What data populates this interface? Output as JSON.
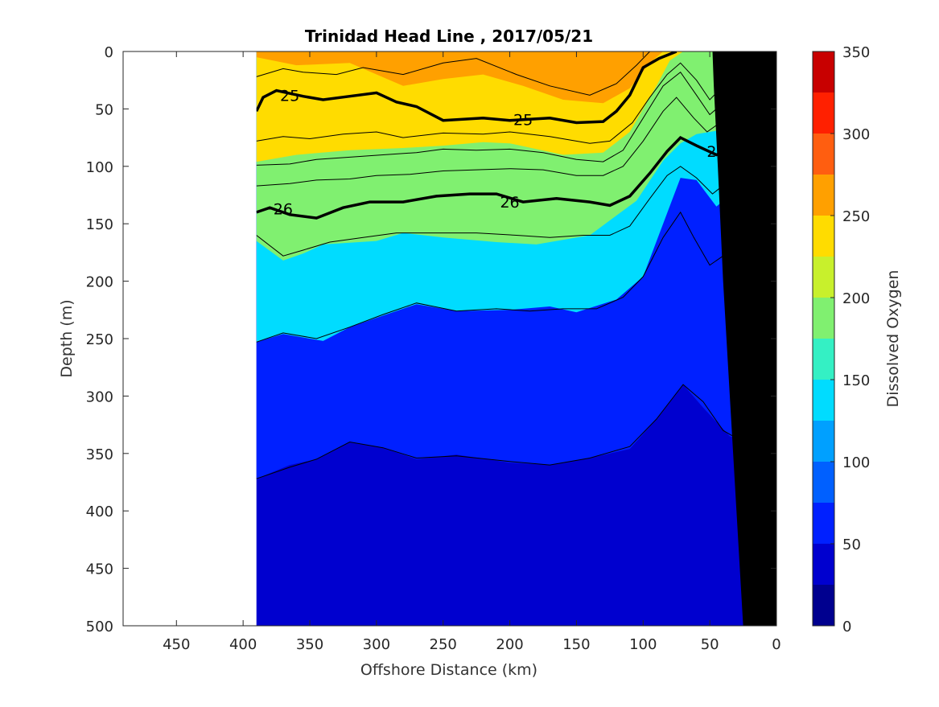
{
  "chart_data": {
    "type": "heatmap",
    "title": "Trinidad Head Line , 2017/05/21",
    "xlabel": "Offshore Distance (km)",
    "ylabel": "Depth (m)",
    "colorbar_label": "Dissolved Oxygen",
    "xlim": [
      490,
      0
    ],
    "ylim": [
      0,
      500
    ],
    "x_ticks": [
      "450",
      "400",
      "350",
      "300",
      "250",
      "200",
      "150",
      "100",
      "50",
      "0"
    ],
    "y_ticks": [
      "0",
      "50",
      "100",
      "150",
      "200",
      "250",
      "300",
      "350",
      "400",
      "450",
      "500"
    ],
    "colorbar_ticks": [
      "0",
      "50",
      "100",
      "150",
      "200",
      "250",
      "300",
      "350"
    ],
    "colorbar_range": [
      0,
      350
    ],
    "levels": [
      0,
      25,
      50,
      75,
      100,
      125,
      150,
      175,
      200,
      225,
      250,
      275,
      300,
      325,
      350
    ],
    "colors": [
      "#00008f",
      "#0000cf",
      "#0020ff",
      "#0060ff",
      "#00a0ff",
      "#00dcff",
      "#34f0c4",
      "#80f070",
      "#c8f02c",
      "#ffdc00",
      "#ffa000",
      "#ff5e10",
      "#ff2000",
      "#c80000"
    ],
    "data_extent_km": [
      390,
      0
    ],
    "oxygen_contours": [
      {
        "level": 250,
        "points": [
          [
            390,
            5
          ],
          [
            360,
            12
          ],
          [
            320,
            10
          ],
          [
            280,
            30
          ],
          [
            250,
            24
          ],
          [
            220,
            20
          ],
          [
            190,
            30
          ],
          [
            160,
            42
          ],
          [
            130,
            45
          ],
          [
            110,
            32
          ],
          [
            95,
            10
          ],
          [
            85,
            0
          ]
        ]
      },
      {
        "level": 225,
        "points": [
          [
            390,
            96
          ],
          [
            360,
            90
          ],
          [
            320,
            86
          ],
          [
            280,
            84
          ],
          [
            250,
            82
          ],
          [
            220,
            79
          ],
          [
            200,
            80
          ],
          [
            160,
            90
          ],
          [
            130,
            88
          ],
          [
            110,
            70
          ],
          [
            90,
            30
          ],
          [
            80,
            8
          ],
          [
            70,
            0
          ]
        ]
      },
      {
        "level": 175,
        "points": [
          [
            390,
            165
          ],
          [
            370,
            182
          ],
          [
            355,
            176
          ],
          [
            340,
            168
          ],
          [
            300,
            165
          ],
          [
            280,
            158
          ],
          [
            250,
            162
          ],
          [
            210,
            166
          ],
          [
            180,
            168
          ],
          [
            140,
            160
          ],
          [
            105,
            130
          ],
          [
            85,
            95
          ],
          [
            72,
            80
          ],
          [
            60,
            72
          ],
          [
            40,
            68
          ],
          [
            20,
            65
          ],
          [
            10,
            60
          ]
        ]
      },
      {
        "level": 125,
        "points": [
          [
            390,
            253
          ],
          [
            370,
            246
          ],
          [
            340,
            252
          ],
          [
            320,
            240
          ],
          [
            295,
            230
          ],
          [
            270,
            220
          ],
          [
            240,
            226
          ],
          [
            200,
            225
          ],
          [
            170,
            222
          ],
          [
            150,
            227
          ],
          [
            120,
            216
          ],
          [
            100,
            196
          ],
          [
            85,
            150
          ],
          [
            72,
            110
          ],
          [
            60,
            112
          ],
          [
            45,
            135
          ],
          [
            30,
            120
          ]
        ]
      },
      {
        "level": 50,
        "points": [
          [
            390,
            372
          ],
          [
            365,
            360
          ],
          [
            345,
            355
          ],
          [
            320,
            340
          ],
          [
            295,
            345
          ],
          [
            270,
            355
          ],
          [
            240,
            351
          ],
          [
            200,
            358
          ],
          [
            170,
            360
          ],
          [
            140,
            354
          ],
          [
            110,
            346
          ],
          [
            90,
            320
          ],
          [
            70,
            290
          ],
          [
            55,
            310
          ],
          [
            35,
            335
          ],
          [
            22,
            340
          ]
        ]
      }
    ],
    "density_contours": [
      {
        "label": "25",
        "points": [
          [
            390,
            52
          ],
          [
            385,
            40
          ],
          [
            375,
            34
          ],
          [
            355,
            39
          ],
          [
            340,
            42
          ],
          [
            320,
            39
          ],
          [
            300,
            36
          ],
          [
            285,
            44
          ],
          [
            270,
            48
          ],
          [
            250,
            60
          ],
          [
            220,
            58
          ],
          [
            200,
            60
          ],
          [
            185,
            59
          ],
          [
            170,
            58
          ],
          [
            150,
            62
          ],
          [
            130,
            61
          ],
          [
            120,
            52
          ],
          [
            110,
            38
          ],
          [
            100,
            14
          ],
          [
            88,
            6
          ],
          [
            75,
            0
          ]
        ],
        "label_positions": [
          [
            365,
            38
          ],
          [
            190,
            59
          ]
        ]
      },
      {
        "label": "26",
        "points": [
          [
            390,
            140
          ],
          [
            380,
            136
          ],
          [
            365,
            142
          ],
          [
            345,
            145
          ],
          [
            325,
            136
          ],
          [
            305,
            131
          ],
          [
            280,
            131
          ],
          [
            255,
            126
          ],
          [
            230,
            124
          ],
          [
            210,
            124
          ],
          [
            190,
            131
          ],
          [
            165,
            128
          ],
          [
            140,
            131
          ],
          [
            125,
            134
          ],
          [
            110,
            126
          ],
          [
            95,
            106
          ],
          [
            82,
            87
          ],
          [
            72,
            75
          ],
          [
            60,
            82
          ],
          [
            45,
            90
          ],
          [
            30,
            83
          ],
          [
            15,
            70
          ],
          [
            8,
            45
          ]
        ],
        "label_positions": [
          [
            370,
            137
          ],
          [
            200,
            131
          ],
          [
            45,
            87
          ]
        ]
      }
    ],
    "sigma_contours": [
      {
        "points": [
          [
            390,
            22
          ],
          [
            370,
            15
          ],
          [
            355,
            18
          ],
          [
            330,
            20
          ],
          [
            310,
            14
          ],
          [
            280,
            20
          ],
          [
            250,
            10
          ],
          [
            225,
            6
          ],
          [
            195,
            20
          ],
          [
            170,
            30
          ],
          [
            140,
            38
          ],
          [
            120,
            28
          ],
          [
            105,
            12
          ],
          [
            95,
            0
          ]
        ]
      },
      {
        "points": [
          [
            390,
            78
          ],
          [
            370,
            74
          ],
          [
            350,
            76
          ],
          [
            325,
            72
          ],
          [
            300,
            70
          ],
          [
            280,
            75
          ],
          [
            250,
            71
          ],
          [
            220,
            72
          ],
          [
            200,
            70
          ],
          [
            170,
            74
          ],
          [
            140,
            80
          ],
          [
            125,
            78
          ],
          [
            108,
            62
          ],
          [
            95,
            40
          ],
          [
            82,
            20
          ],
          [
            72,
            10
          ],
          [
            60,
            25
          ],
          [
            50,
            42
          ],
          [
            40,
            30
          ],
          [
            28,
            10
          ],
          [
            20,
            0
          ]
        ]
      },
      {
        "points": [
          [
            390,
            99
          ],
          [
            365,
            98
          ],
          [
            345,
            94
          ],
          [
            320,
            92
          ],
          [
            295,
            90
          ],
          [
            270,
            88
          ],
          [
            250,
            85
          ],
          [
            225,
            86
          ],
          [
            200,
            85
          ],
          [
            175,
            88
          ],
          [
            150,
            94
          ],
          [
            130,
            96
          ],
          [
            115,
            86
          ],
          [
            100,
            58
          ],
          [
            85,
            30
          ],
          [
            72,
            18
          ],
          [
            60,
            38
          ],
          [
            50,
            55
          ],
          [
            35,
            40
          ],
          [
            22,
            20
          ],
          [
            12,
            8
          ]
        ]
      },
      {
        "points": [
          [
            390,
            117
          ],
          [
            365,
            115
          ],
          [
            345,
            112
          ],
          [
            320,
            111
          ],
          [
            300,
            108
          ],
          [
            275,
            107
          ],
          [
            250,
            104
          ],
          [
            225,
            103
          ],
          [
            200,
            102
          ],
          [
            175,
            103
          ],
          [
            150,
            108
          ],
          [
            130,
            108
          ],
          [
            115,
            100
          ],
          [
            100,
            78
          ],
          [
            85,
            52
          ],
          [
            75,
            40
          ],
          [
            62,
            58
          ],
          [
            52,
            70
          ],
          [
            40,
            60
          ],
          [
            28,
            44
          ],
          [
            18,
            30
          ],
          [
            10,
            20
          ]
        ]
      },
      {
        "points": [
          [
            390,
            160
          ],
          [
            370,
            178
          ],
          [
            355,
            173
          ],
          [
            335,
            166
          ],
          [
            310,
            162
          ],
          [
            285,
            158
          ],
          [
            255,
            158
          ],
          [
            225,
            158
          ],
          [
            195,
            160
          ],
          [
            170,
            162
          ],
          [
            145,
            160
          ],
          [
            125,
            160
          ],
          [
            110,
            152
          ],
          [
            95,
            128
          ],
          [
            82,
            108
          ],
          [
            72,
            100
          ],
          [
            60,
            110
          ],
          [
            48,
            124
          ],
          [
            35,
            112
          ],
          [
            20,
            100
          ],
          [
            10,
            96
          ]
        ]
      },
      {
        "points": [
          [
            390,
            253
          ],
          [
            370,
            245
          ],
          [
            345,
            250
          ],
          [
            320,
            240
          ],
          [
            295,
            229
          ],
          [
            270,
            219
          ],
          [
            240,
            226
          ],
          [
            210,
            224
          ],
          [
            185,
            226
          ],
          [
            160,
            224
          ],
          [
            135,
            224
          ],
          [
            115,
            214
          ],
          [
            100,
            196
          ],
          [
            85,
            162
          ],
          [
            72,
            140
          ],
          [
            62,
            162
          ],
          [
            50,
            186
          ],
          [
            40,
            178
          ],
          [
            25,
            160
          ]
        ]
      },
      {
        "points": [
          [
            390,
            372
          ],
          [
            365,
            362
          ],
          [
            345,
            355
          ],
          [
            320,
            340
          ],
          [
            295,
            345
          ],
          [
            270,
            354
          ],
          [
            240,
            352
          ],
          [
            200,
            357
          ],
          [
            170,
            360
          ],
          [
            140,
            354
          ],
          [
            110,
            344
          ],
          [
            90,
            320
          ],
          [
            70,
            290
          ],
          [
            55,
            305
          ],
          [
            40,
            330
          ],
          [
            25,
            340
          ]
        ]
      }
    ],
    "bathymetry": [
      [
        0,
        0
      ],
      [
        0,
        500
      ],
      [
        25,
        500
      ],
      [
        30,
        400
      ],
      [
        35,
        300
      ],
      [
        40,
        200
      ],
      [
        44,
        100
      ],
      [
        47,
        30
      ],
      [
        48,
        0
      ]
    ],
    "annotations": [
      "25",
      "25",
      "26",
      "26",
      "26"
    ]
  }
}
